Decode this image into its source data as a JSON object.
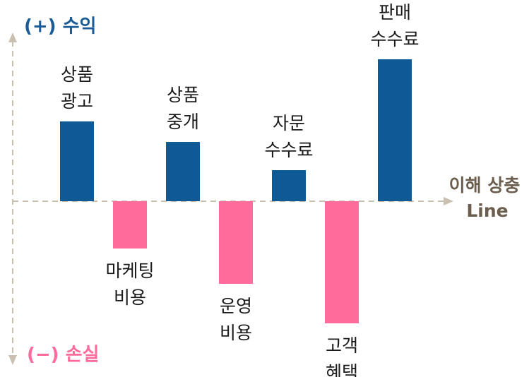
{
  "chart_data": {
    "type": "bar",
    "y_positive_label": "(+) 수익",
    "y_negative_label": "(−) 손실",
    "threshold_label": [
      "이해 상충",
      "Line"
    ],
    "categories": [
      [
        "상품",
        "광고"
      ],
      [
        "마케팅",
        "비용"
      ],
      [
        "상품",
        "중개"
      ],
      [
        "운영",
        "비용"
      ],
      [
        "자문",
        "수수료"
      ],
      [
        "고객",
        "혜택"
      ],
      [
        "판매",
        "수수료"
      ]
    ],
    "values": [
      113,
      -67,
      84,
      -117,
      44,
      -173,
      201
    ],
    "positive_color": "#0f5a96",
    "negative_color": "#ff6b9b",
    "ylim": [
      -230,
      250
    ]
  }
}
